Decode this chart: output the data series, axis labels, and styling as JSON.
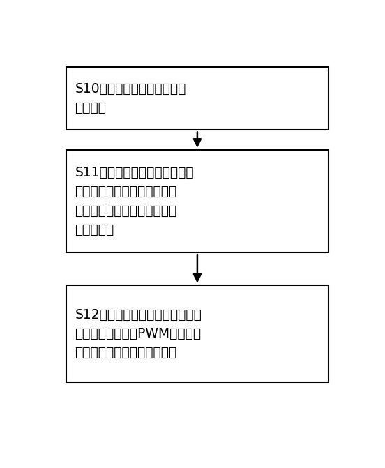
{
  "background_color": "#ffffff",
  "border_color": "#000000",
  "text_color": "#000000",
  "arrow_color": "#000000",
  "boxes": [
    {
      "lines": [
        "S10：通过温度传感器采集室",
        "外温度。"
      ]
    },
    {
      "lines": [
        "S11：主控模块根据采集的室外",
        "温度判断加热电流的大小，并",
        "向变频器发送调节加热电流大",
        "小的指令。"
      ]
    },
    {
      "lines": [
        "S12：变频器接收控制指令，采用",
        "矢量控制方法控制PWM波产生对",
        "应的电流对压缩机进行加热。"
      ]
    }
  ],
  "fig_width": 5.52,
  "fig_height": 6.71,
  "dpi": 100
}
